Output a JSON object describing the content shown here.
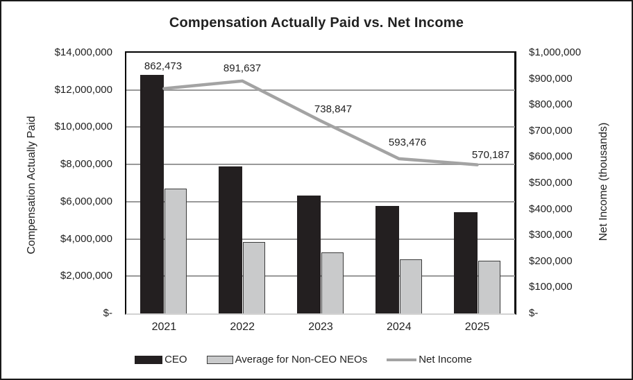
{
  "chart_data": {
    "type": "combo-bar-line",
    "title": "Compensation Actually Paid vs. Net Income",
    "categories": [
      "2021",
      "2022",
      "2023",
      "2024",
      "2025"
    ],
    "left_axis": {
      "label": "Compensation Actually Paid",
      "ticks": [
        "$14,000,000",
        "$12,000,000",
        "$10,000,000",
        "$8,000,000",
        "$6,000,000",
        "$4,000,000",
        "$2,000,000",
        "$-"
      ],
      "range": [
        0,
        14000000
      ],
      "tick_step": 2000000
    },
    "right_axis": {
      "label": "Net Income (thousands)",
      "ticks": [
        "$1,000,000",
        "$900,000",
        "$800,000",
        "$700,000",
        "$600,000",
        "$500,000",
        "$400,000",
        "$300,000",
        "$200,000",
        "$100,000",
        "$-"
      ],
      "range": [
        0,
        1000000
      ],
      "tick_step": 100000
    },
    "series": [
      {
        "name": "CEO",
        "type": "bar",
        "axis": "left",
        "color": "#231f20",
        "values": [
          12750000,
          7850000,
          6300000,
          5750000,
          5400000
        ]
      },
      {
        "name": "Average for Non-CEO NEOs",
        "type": "bar",
        "axis": "left",
        "color": "#c9cacb",
        "border_color": "#3a3a3a",
        "values": [
          6650000,
          3800000,
          3250000,
          2900000,
          2800000
        ]
      },
      {
        "name": "Net Income",
        "type": "line",
        "axis": "right",
        "color": "#a3a3a3",
        "values": [
          862473,
          891637,
          738847,
          593476,
          570187
        ],
        "data_labels": [
          "862,473",
          "891,637",
          "738,847",
          "593,476",
          "570,187"
        ]
      }
    ],
    "grid": true,
    "legend_position": "bottom",
    "colors": {
      "text": "#212121",
      "gridline": "#999999",
      "axis_line_bottom": "#d2d2d2",
      "plot_border": "#000000",
      "outer_border": "#1a1a1a",
      "background": "#ffffff"
    }
  }
}
